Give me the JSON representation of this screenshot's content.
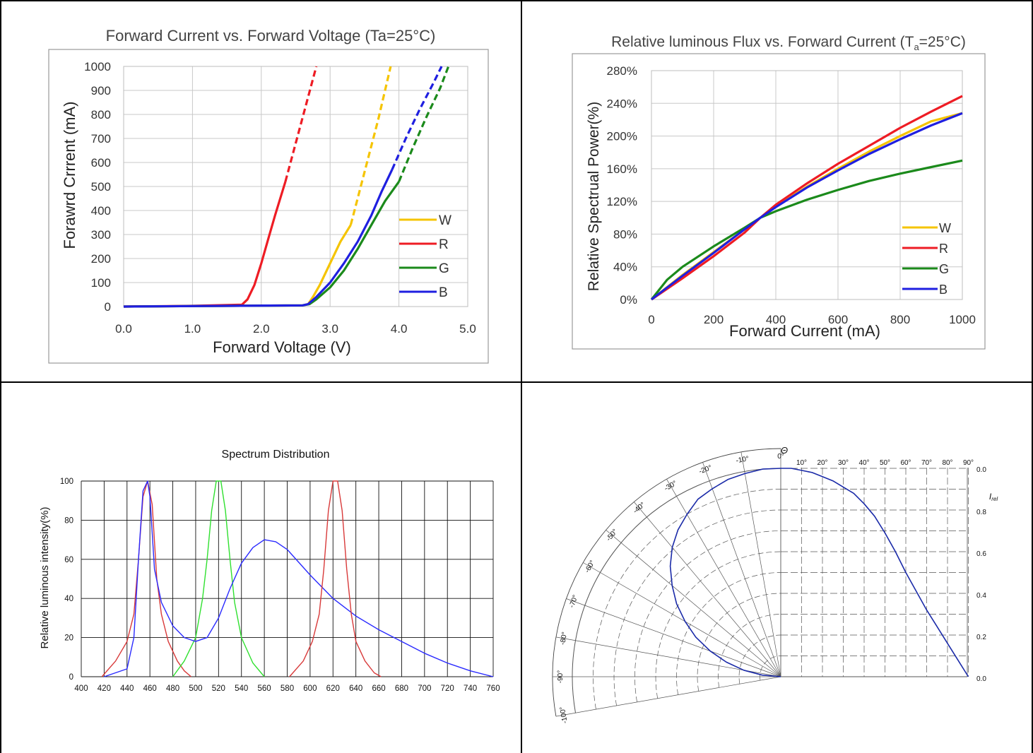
{
  "colors": {
    "W": "#f5c400",
    "R": "#ee1c24",
    "G": "#1b8a1b",
    "B": "#1f1fe0",
    "spec_red": "#d83a3a",
    "spec_green": "#2fe02f",
    "spec_blue": "#2a2aff",
    "polar_curve": "#1a2aa8"
  },
  "chart_data": [
    {
      "type": "line",
      "title": "Forward Current vs. Forward Voltage  (Ta=25°C)",
      "xlabel": "Forward Voltage (V)",
      "ylabel": "Forawrd Crrrent (mA)",
      "xlim": [
        0,
        5
      ],
      "ylim": [
        0,
        1000
      ],
      "xticks": [
        "0.0",
        "1.0",
        "2.0",
        "3.0",
        "4.0",
        "5.0"
      ],
      "yticks": [
        "0",
        "100",
        "200",
        "300",
        "400",
        "500",
        "600",
        "700",
        "800",
        "900",
        "1000"
      ],
      "grid": true,
      "legend_position": "right",
      "series": [
        {
          "name": "W",
          "color_key": "W",
          "solid": [
            [
              0,
              0
            ],
            [
              1.5,
              3
            ],
            [
              2.6,
              5
            ],
            [
              2.68,
              10
            ],
            [
              2.75,
              40
            ],
            [
              2.85,
              90
            ],
            [
              3.0,
              180
            ],
            [
              3.15,
              270
            ],
            [
              3.3,
              340
            ]
          ],
          "dashed": [
            [
              3.3,
              340
            ],
            [
              3.5,
              560
            ],
            [
              3.7,
              780
            ],
            [
              3.88,
              1000
            ]
          ]
        },
        {
          "name": "R",
          "color_key": "R",
          "solid": [
            [
              0,
              0
            ],
            [
              1.0,
              3
            ],
            [
              1.72,
              8
            ],
            [
              1.8,
              30
            ],
            [
              1.9,
              90
            ],
            [
              2.0,
              180
            ],
            [
              2.1,
              280
            ],
            [
              2.2,
              380
            ],
            [
              2.35,
              520
            ]
          ],
          "dashed": [
            [
              2.35,
              520
            ],
            [
              2.5,
              680
            ],
            [
              2.65,
              840
            ],
            [
              2.8,
              1000
            ]
          ]
        },
        {
          "name": "G",
          "color_key": "G",
          "solid": [
            [
              0,
              0
            ],
            [
              1.5,
              3
            ],
            [
              2.6,
              5
            ],
            [
              2.7,
              10
            ],
            [
              2.8,
              30
            ],
            [
              3.0,
              80
            ],
            [
              3.2,
              150
            ],
            [
              3.4,
              240
            ],
            [
              3.6,
              340
            ],
            [
              3.8,
              440
            ],
            [
              4.0,
              520
            ]
          ],
          "dashed": [
            [
              4.0,
              520
            ],
            [
              4.2,
              660
            ],
            [
              4.4,
              790
            ],
            [
              4.6,
              910
            ],
            [
              4.72,
              1000
            ]
          ]
        },
        {
          "name": "B",
          "color_key": "B",
          "solid": [
            [
              0,
              0
            ],
            [
              1.5,
              3
            ],
            [
              2.6,
              5
            ],
            [
              2.68,
              10
            ],
            [
              2.8,
              40
            ],
            [
              3.0,
              100
            ],
            [
              3.2,
              180
            ],
            [
              3.4,
              270
            ],
            [
              3.6,
              380
            ],
            [
              3.75,
              480
            ],
            [
              3.9,
              570
            ]
          ],
          "dashed": [
            [
              3.9,
              570
            ],
            [
              4.1,
              700
            ],
            [
              4.3,
              820
            ],
            [
              4.5,
              930
            ],
            [
              4.62,
              1000
            ]
          ]
        }
      ]
    },
    {
      "type": "line",
      "title": "Relative luminous Flux vs. Forward Current (T",
      "title_sub": "a",
      "title_tail": "=25°C)",
      "xlabel": "Forward Current (mA)",
      "ylabel": "Relative Spectrual Power(%)",
      "xlim": [
        0,
        1000
      ],
      "ylim": [
        0,
        280
      ],
      "xticks": [
        "0",
        "200",
        "400",
        "600",
        "800",
        "1000"
      ],
      "yticks": [
        "0%",
        "40%",
        "80%",
        "120%",
        "160%",
        "200%",
        "240%",
        "280%"
      ],
      "grid": true,
      "legend_position": "right",
      "series": [
        {
          "name": "W",
          "color_key": "W",
          "x": [
            0,
            100,
            200,
            300,
            350,
            400,
            500,
            600,
            700,
            800,
            900,
            1000
          ],
          "y": [
            0,
            30,
            58,
            86,
            100,
            114,
            138,
            160,
            181,
            200,
            218,
            228
          ]
        },
        {
          "name": "R",
          "color_key": "R",
          "x": [
            0,
            100,
            200,
            300,
            350,
            400,
            500,
            600,
            700,
            800,
            900,
            1000
          ],
          "y": [
            0,
            26,
            53,
            82,
            100,
            116,
            142,
            166,
            188,
            210,
            230,
            249
          ]
        },
        {
          "name": "G",
          "color_key": "G",
          "x": [
            0,
            50,
            100,
            200,
            300,
            350,
            400,
            500,
            600,
            700,
            800,
            900,
            1000
          ],
          "y": [
            0,
            24,
            40,
            65,
            88,
            100,
            108,
            122,
            134,
            145,
            154,
            162,
            170
          ]
        },
        {
          "name": "B",
          "color_key": "B",
          "x": [
            0,
            100,
            200,
            300,
            350,
            400,
            500,
            600,
            700,
            800,
            900,
            1000
          ],
          "y": [
            0,
            29,
            57,
            86,
            100,
            113,
            137,
            158,
            178,
            196,
            213,
            228
          ]
        }
      ]
    },
    {
      "type": "line",
      "title": "Spectrum Distribution",
      "xlabel": "",
      "ylabel": "Relative luminous intensity(%)",
      "xlim": [
        400,
        760
      ],
      "ylim": [
        0,
        100
      ],
      "xticks": [
        "400",
        "420",
        "440",
        "460",
        "480",
        "500",
        "520",
        "540",
        "560",
        "580",
        "600",
        "620",
        "640",
        "660",
        "680",
        "700",
        "720",
        "740",
        "760"
      ],
      "yticks": [
        "0",
        "20",
        "40",
        "60",
        "80",
        "100"
      ],
      "grid": true,
      "series": [
        {
          "color_key": "spec_red",
          "x": [
            418,
            430,
            440,
            446,
            450,
            454,
            458,
            462,
            466,
            470,
            476,
            484,
            490,
            496
          ],
          "y": [
            0,
            8,
            18,
            32,
            60,
            92,
            100,
            88,
            50,
            32,
            18,
            8,
            3,
            0
          ]
        },
        {
          "color_key": "spec_green",
          "x": [
            480,
            490,
            500,
            506,
            510,
            514,
            518,
            522,
            526,
            530,
            534,
            540,
            550,
            560
          ],
          "y": [
            0,
            8,
            20,
            40,
            60,
            85,
            100,
            100,
            85,
            60,
            38,
            20,
            7,
            0
          ]
        },
        {
          "color_key": "spec_blue",
          "x": [
            420,
            440,
            446,
            450,
            454,
            458,
            460,
            464,
            470,
            480,
            490,
            500,
            510,
            520,
            530,
            540,
            550,
            560,
            570,
            580,
            600,
            620,
            640,
            660,
            680,
            700,
            720,
            740,
            760
          ],
          "y": [
            0,
            4,
            20,
            60,
            95,
            100,
            92,
            55,
            38,
            26,
            20,
            18,
            20,
            30,
            45,
            58,
            66,
            70,
            69,
            65,
            52,
            40,
            31,
            24,
            18,
            12,
            7,
            3,
            0
          ]
        },
        {
          "color_key": "spec_red",
          "x": [
            582,
            594,
            602,
            608,
            612,
            616,
            620,
            624,
            628,
            632,
            636,
            640,
            648,
            656,
            662
          ],
          "y": [
            0,
            8,
            18,
            32,
            55,
            85,
            100,
            100,
            85,
            55,
            32,
            18,
            8,
            2,
            0
          ]
        }
      ]
    },
    {
      "type": "polar",
      "title": "Θ",
      "ylabel": "I",
      "ylabel_sub": "rel",
      "angle_labels": [
        "-100°",
        "-90°",
        "-80°",
        "-70°",
        "-60°",
        "-50°",
        "-40°",
        "-30°",
        "-20°",
        "-10°",
        "0°",
        "10°",
        "20°",
        "30°",
        "40°",
        "50°",
        "60°",
        "70°",
        "80°",
        "90°"
      ],
      "radial_ticks": [
        "0.0",
        "0.2",
        "0.4",
        "0.6",
        "0.8",
        "0.0"
      ],
      "rlim": [
        0,
        1
      ],
      "series": [
        {
          "color_key": "polar_curve",
          "angle_deg": [
            -90,
            -85,
            -80,
            -75,
            -70,
            -65,
            -60,
            -55,
            -50,
            -45,
            -40,
            -35,
            -30,
            -25,
            -20,
            -15,
            -10,
            -5,
            0,
            5,
            10,
            15,
            20,
            25,
            30,
            35,
            40,
            45,
            50,
            55,
            60,
            65,
            70,
            75,
            80,
            85,
            90
          ],
          "r": [
            0.0,
            0.09,
            0.18,
            0.27,
            0.36,
            0.45,
            0.53,
            0.61,
            0.68,
            0.75,
            0.81,
            0.86,
            0.9,
            0.94,
            0.96,
            0.98,
            0.99,
            1.0,
            1.0,
            1.0,
            0.99,
            0.98,
            0.96,
            0.94,
            0.91,
            0.88,
            0.83,
            0.77,
            0.69,
            0.6,
            0.5,
            0.41,
            0.32,
            0.24,
            0.16,
            0.08,
            0.0
          ]
        }
      ]
    }
  ]
}
